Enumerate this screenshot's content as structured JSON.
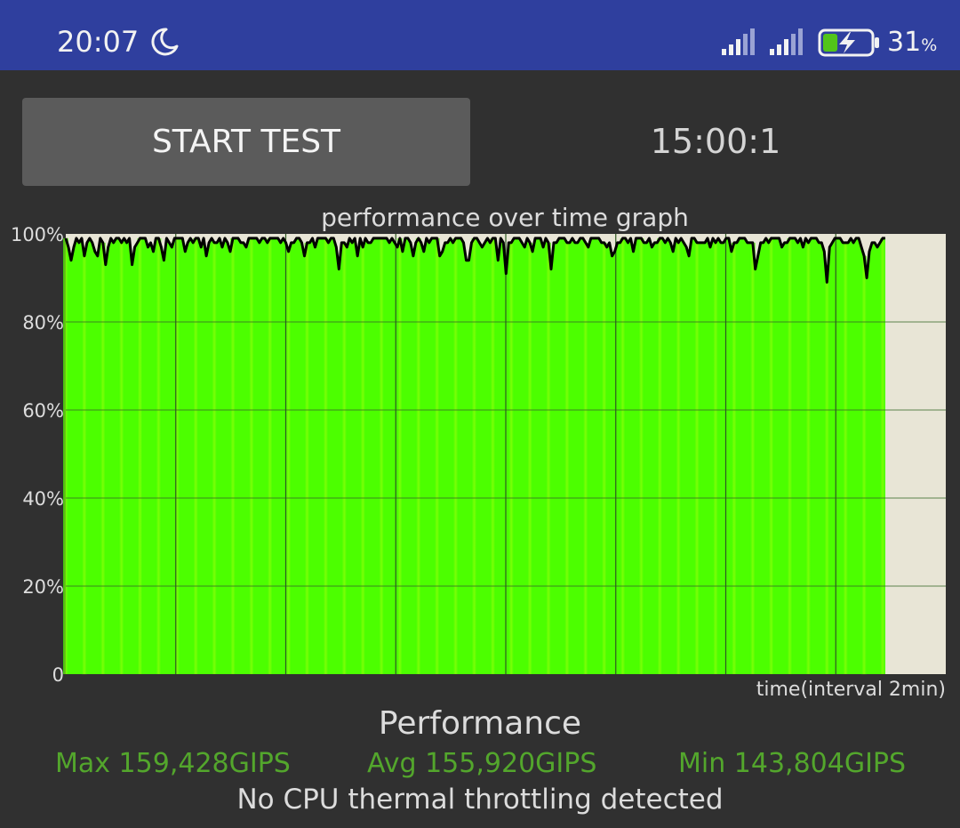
{
  "status_bar": {
    "time": "20:07",
    "battery_percent": "31",
    "battery_unit": "%",
    "battery_level": 0.31,
    "charging": true,
    "icons": [
      "moon-icon",
      "signal-icon",
      "signal-icon",
      "battery-charging-icon"
    ]
  },
  "controls": {
    "start_button_label": "START TEST",
    "timer": "15:00:1"
  },
  "chart_data": {
    "type": "area",
    "title": "performance over time graph",
    "xlabel": "time(interval 2min)",
    "ylabel": "",
    "ylim": [
      0,
      100
    ],
    "ytick_labels": [
      "0",
      "20%",
      "40%",
      "60%",
      "80%",
      "100%"
    ],
    "yticks": [
      0,
      20,
      40,
      60,
      80,
      100
    ],
    "x_unit": "minutes",
    "xlim": [
      0,
      16
    ],
    "x_gridlines_minutes": [
      2,
      4,
      6,
      8,
      10,
      12,
      14
    ],
    "grid": true,
    "fill_color": "#4cff00",
    "line_color": "#000000",
    "background_color": "#e8e5d6",
    "series": [
      {
        "values": [
          99,
          97,
          94,
          97,
          99,
          98,
          99,
          95,
          98,
          99,
          98,
          96,
          95,
          99,
          98,
          93,
          97,
          99,
          98,
          99,
          99,
          98,
          99,
          98,
          99,
          93,
          97,
          98,
          99,
          99,
          99,
          97,
          98,
          96,
          99,
          99,
          97,
          94,
          99,
          98,
          97,
          99,
          99,
          99,
          99,
          96,
          98,
          99,
          98,
          99,
          99,
          97,
          99,
          95,
          98,
          99,
          98,
          98,
          99,
          97,
          99,
          98,
          96,
          99,
          99,
          99,
          98,
          98,
          97,
          99,
          99,
          99,
          99,
          98,
          99,
          99,
          98,
          99,
          99,
          99,
          99,
          98,
          99,
          98,
          96,
          98,
          98,
          99,
          99,
          98,
          95,
          98,
          98,
          99,
          97,
          99,
          99,
          99,
          99,
          98,
          99,
          99,
          97,
          92,
          98,
          98,
          97,
          99,
          98,
          99,
          95,
          99,
          97,
          99,
          98,
          98,
          99,
          99,
          99,
          99,
          99,
          99,
          98,
          99,
          98,
          97,
          99,
          96,
          99,
          99,
          98,
          95,
          98,
          99,
          98,
          96,
          99,
          98,
          99,
          99,
          99,
          95,
          96,
          98,
          98,
          99,
          98,
          99,
          99,
          99,
          98,
          94,
          94,
          98,
          99,
          99,
          98,
          97,
          98,
          99,
          98,
          99,
          99,
          94,
          99,
          98,
          91,
          98,
          98,
          99,
          99,
          99,
          98,
          97,
          99,
          98,
          96,
          99,
          99,
          99,
          97,
          99,
          98,
          92,
          98,
          98,
          99,
          99,
          99,
          98,
          98,
          99,
          98,
          98,
          99,
          99,
          98,
          97,
          99,
          99,
          99,
          99,
          98,
          98,
          97,
          98,
          95,
          96,
          98,
          98,
          99,
          99,
          98,
          99,
          96,
          99,
          99,
          99,
          98,
          98,
          99,
          97,
          98,
          98,
          99,
          99,
          98,
          99,
          98,
          96,
          99,
          98,
          99,
          98,
          97,
          95,
          99,
          99,
          98,
          98,
          98,
          98,
          99,
          97,
          99,
          98,
          99,
          98,
          98,
          99,
          99,
          96,
          98,
          98,
          99,
          99,
          99,
          98,
          98,
          98,
          92,
          95,
          98,
          98,
          99,
          98,
          99,
          99,
          99,
          99,
          97,
          98,
          98,
          99,
          99,
          99,
          98,
          99,
          97,
          99,
          98,
          99,
          99,
          99,
          98,
          98,
          96,
          89,
          97,
          98,
          99,
          99,
          99,
          98,
          98,
          98,
          99,
          98,
          99,
          99,
          97,
          95,
          90,
          96,
          98,
          98,
          97,
          98,
          99,
          99
        ]
      }
    ]
  },
  "performance": {
    "title": "Performance",
    "max_label": "Max 159,428GIPS",
    "avg_label": "Avg 155,920GIPS",
    "min_label": "Min 143,804GIPS",
    "stat_color": "#53a62c",
    "throttle_message": "No CPU thermal throttling detected"
  }
}
